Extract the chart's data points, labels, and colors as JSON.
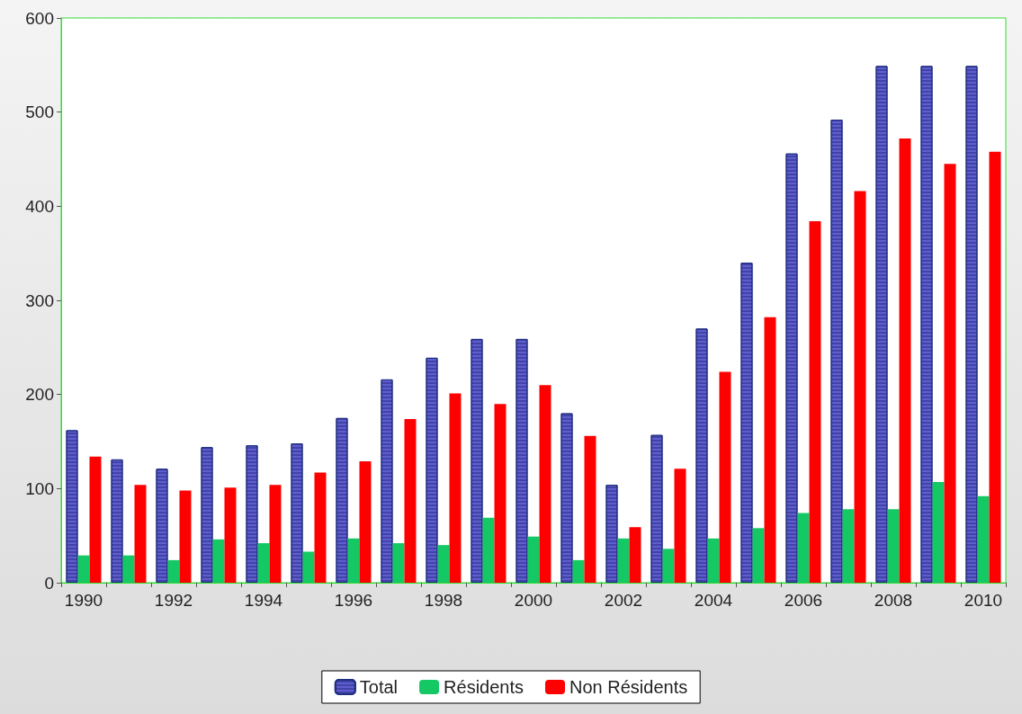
{
  "chart_data": {
    "type": "bar",
    "categories": [
      "1990",
      null,
      "1992",
      null,
      "1994",
      null,
      "1996",
      null,
      "1998",
      null,
      "2000",
      null,
      "2002",
      null,
      "2004",
      null,
      "2006",
      null,
      "2008",
      null,
      "2010"
    ],
    "series": [
      {
        "name": "Total",
        "color": "#6666dd",
        "values": [
          162,
          131,
          121,
          144,
          146,
          148,
          175,
          216,
          239,
          259,
          259,
          180,
          104,
          157,
          270,
          340,
          456,
          492,
          549,
          549,
          549
        ]
      },
      {
        "name": "Résidents",
        "color": "#14c864",
        "values": [
          29,
          29,
          24,
          46,
          42,
          33,
          47,
          42,
          40,
          69,
          49,
          24,
          47,
          36,
          47,
          58,
          74,
          78,
          78,
          107,
          92
        ]
      },
      {
        "name": "Non Résidents",
        "color": "#ff0000",
        "values": [
          134,
          104,
          98,
          101,
          104,
          117,
          129,
          174,
          201,
          190,
          210,
          156,
          59,
          121,
          224,
          282,
          384,
          416,
          472,
          445,
          458
        ]
      }
    ],
    "ylim": [
      0,
      600
    ],
    "yticks": [
      0,
      100,
      200,
      300,
      400,
      500,
      600
    ],
    "grid": false,
    "legend": "bottom"
  }
}
